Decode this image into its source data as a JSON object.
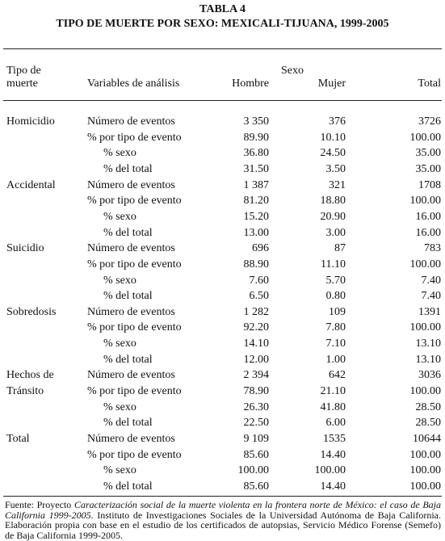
{
  "header": {
    "title": "TABLA 4",
    "subtitle": "TIPO DE MUERTE POR SEXO: MEXICALI-TIJUANA, 1999-2005"
  },
  "table": {
    "columns": {
      "group": [
        "Tipo de",
        "muerte"
      ],
      "variable": "Variables de análisis",
      "sexo": "Sexo",
      "hombre": "Hombre",
      "mujer": "Mujer",
      "total": "Total"
    },
    "groups": [
      {
        "label": [
          "Homicidio"
        ],
        "rows": [
          [
            "Número de eventos",
            "3 350",
            "376",
            "3726"
          ],
          [
            "% por tipo de evento",
            "89.90",
            "10.10",
            "100.00"
          ],
          [
            "% sexo",
            "36.80",
            "24.50",
            "35.00"
          ],
          [
            "% del total",
            "31.50",
            "3.50",
            "35.00"
          ]
        ]
      },
      {
        "label": [
          "Accidental"
        ],
        "rows": [
          [
            "Número de eventos",
            "1 387",
            "321",
            "1708"
          ],
          [
            "% por tipo de evento",
            "81.20",
            "18.80",
            "100.00"
          ],
          [
            "% sexo",
            "15.20",
            "20.90",
            "16.00"
          ],
          [
            "% del total",
            "13.00",
            "3.00",
            "16.00"
          ]
        ]
      },
      {
        "label": [
          "Suicidio"
        ],
        "rows": [
          [
            "Número de eventos",
            "696",
            "87",
            "783"
          ],
          [
            "% por tipo de evento",
            "88.90",
            "11.10",
            "100.00"
          ],
          [
            "% sexo",
            "7.60",
            "5.70",
            "7.40"
          ],
          [
            "% del total",
            "6.50",
            "0.80",
            "7.40"
          ]
        ]
      },
      {
        "label": [
          "Sobredosis"
        ],
        "rows": [
          [
            "Número de eventos",
            "1 282",
            "109",
            "1391"
          ],
          [
            "% por tipo de evento",
            "92.20",
            "7.80",
            "100.00"
          ],
          [
            "% sexo",
            "14.10",
            "7.10",
            "13.10"
          ],
          [
            "% del total",
            "12.00",
            "1.00",
            "13.10"
          ]
        ]
      },
      {
        "label": [
          "Hechos de",
          "Tránsito"
        ],
        "rows": [
          [
            "Número de eventos",
            "2 394",
            "642",
            "3036"
          ],
          [
            "% por tipo de evento",
            "78.90",
            "21.10",
            "100.00"
          ],
          [
            "% sexo",
            "26.30",
            "41.80",
            "28.50"
          ],
          [
            "% del total",
            "22.50",
            "6.00",
            "28.50"
          ]
        ]
      },
      {
        "label": [
          "Total"
        ],
        "rows": [
          [
            "Número de eventos",
            "9 109",
            "1535",
            "10644"
          ],
          [
            "% por tipo de evento",
            "85.60",
            "14.40",
            "100.00"
          ],
          [
            "% sexo",
            "100.00",
            "100.00",
            "100.00"
          ],
          [
            "% del total",
            "85.60",
            "14.40",
            "100.00"
          ]
        ]
      }
    ]
  },
  "footnote": {
    "lead": "Fuente: Proyecto ",
    "italic": "Caracterización social de la muerte violenta en la frontera norte de México: el caso de Baja California 1999-2005",
    "rest": ". Instituto de Investigaciones Sociales de la Universidad Autónoma de Baja California. Elaboración propia con base en el estudio de los certificados de autopsias, Servicio Médico Forense (Semefo) de Baja California 1999-2005."
  }
}
